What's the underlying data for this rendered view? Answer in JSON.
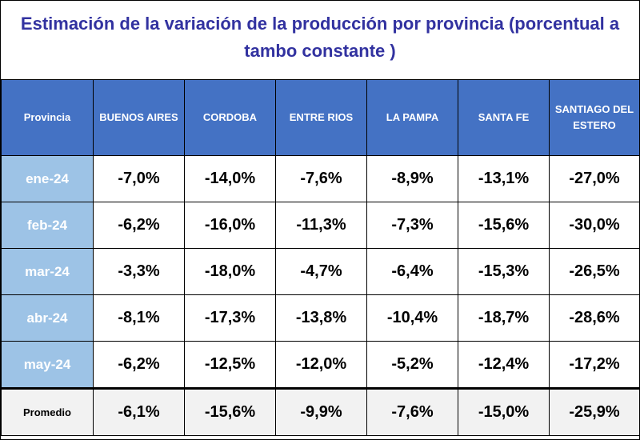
{
  "title_line1": "Estimación de la variación de la producción por provincia (porcentual a",
  "title_line2": "tambo constante )",
  "header": {
    "provincia": "Provincia",
    "columns": [
      "BUENOS AIRES",
      "CORDOBA",
      "ENTRE RIOS",
      "LA PAMPA",
      "SANTA FE",
      "SANTIAGO DEL ESTERO"
    ]
  },
  "rows": [
    {
      "month": "ene-24",
      "values": [
        "-7,0%",
        "-14,0%",
        "-7,6%",
        "-8,9%",
        "-13,1%",
        "-27,0%"
      ]
    },
    {
      "month": "feb-24",
      "values": [
        "-6,2%",
        "-16,0%",
        "-11,3%",
        "-7,3%",
        "-15,6%",
        "-30,0%"
      ]
    },
    {
      "month": "mar-24",
      "values": [
        "-3,3%",
        "-18,0%",
        "-4,7%",
        "-6,4%",
        "-15,3%",
        "-26,5%"
      ]
    },
    {
      "month": "abr-24",
      "values": [
        "-8,1%",
        "-17,3%",
        "-13,8%",
        "-10,4%",
        "-18,7%",
        "-28,6%"
      ]
    },
    {
      "month": "may-24",
      "values": [
        "-6,2%",
        "-12,5%",
        "-12,0%",
        "-5,2%",
        "-12,4%",
        "-17,2%"
      ]
    }
  ],
  "average": {
    "label": "Promedio",
    "values": [
      "-6,1%",
      "-15,6%",
      "-9,9%",
      "-7,6%",
      "-15,0%",
      "-25,9%"
    ]
  },
  "colors": {
    "title": "#3232a0",
    "header_bg": "#4472c4",
    "month_bg": "#9dc3e6",
    "average_bg": "#f2f2f2"
  }
}
